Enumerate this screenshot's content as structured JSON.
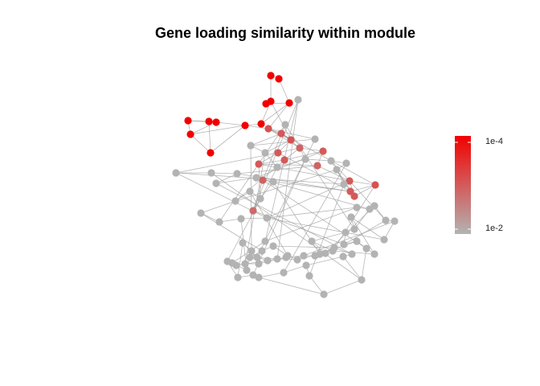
{
  "title": "Gene loading similarity within module",
  "colors": {
    "high": "#f20000",
    "low": "#b3b3b3",
    "edge": "#9e9e9e"
  },
  "colorbar": {
    "top_label": "1e-4",
    "bottom_label": "1e-2"
  },
  "nodes": [
    {
      "id": 0,
      "v": 1.0
    },
    {
      "id": 1,
      "v": 1.0
    },
    {
      "id": 2,
      "v": 1.0
    },
    {
      "id": 3,
      "v": 1.0
    },
    {
      "id": 4,
      "v": 1.0
    },
    {
      "id": 5,
      "v": 1.0
    },
    {
      "id": 6,
      "v": 1.0
    },
    {
      "id": 7,
      "v": 1.0
    },
    {
      "id": 8,
      "v": 1.0
    },
    {
      "id": 9,
      "v": 1.0
    },
    {
      "id": 10,
      "v": 1.0
    },
    {
      "id": 11,
      "v": 1.0
    },
    {
      "id": 12,
      "v": 0.55
    },
    {
      "id": 13,
      "v": 0.5
    },
    {
      "id": 14,
      "v": 0.55
    },
    {
      "id": 15,
      "v": 0.5
    },
    {
      "id": 16,
      "v": 0.45
    },
    {
      "id": 17,
      "v": 0.5
    },
    {
      "id": 18,
      "v": 0.5
    },
    {
      "id": 19,
      "v": 0.5
    },
    {
      "id": 20,
      "v": 0.45
    },
    {
      "id": 21,
      "v": 0.5
    },
    {
      "id": 22,
      "v": 0.55
    },
    {
      "id": 23,
      "v": 0.5
    },
    {
      "id": 24,
      "v": 0.5
    },
    {
      "id": 25,
      "v": 0.45
    },
    {
      "id": 26,
      "v": 0.4
    },
    {
      "id": 27,
      "v": 0.0
    },
    {
      "id": 28,
      "v": 0.0
    },
    {
      "id": 29,
      "v": 0.0
    },
    {
      "id": 30,
      "v": 0.0
    },
    {
      "id": 31,
      "v": 0.0
    },
    {
      "id": 32,
      "v": 0.0
    },
    {
      "id": 33,
      "v": 0.0
    },
    {
      "id": 34,
      "v": 0.0
    },
    {
      "id": 35,
      "v": 0.0
    },
    {
      "id": 36,
      "v": 0.0
    },
    {
      "id": 37,
      "v": 0.0
    },
    {
      "id": 38,
      "v": 0.0
    },
    {
      "id": 39,
      "v": 0.0
    },
    {
      "id": 40,
      "v": 0.0
    },
    {
      "id": 41,
      "v": 0.0
    },
    {
      "id": 42,
      "v": 0.0
    },
    {
      "id": 43,
      "v": 0.0
    },
    {
      "id": 44,
      "v": 0.0
    },
    {
      "id": 45,
      "v": 0.0
    },
    {
      "id": 46,
      "v": 0.0
    },
    {
      "id": 47,
      "v": 0.0
    },
    {
      "id": 48,
      "v": 0.0
    },
    {
      "id": 49,
      "v": 0.0
    },
    {
      "id": 50,
      "v": 0.0
    },
    {
      "id": 51,
      "v": 0.0
    },
    {
      "id": 52,
      "v": 0.0
    },
    {
      "id": 53,
      "v": 0.0
    },
    {
      "id": 54,
      "v": 0.0
    },
    {
      "id": 55,
      "v": 0.0
    },
    {
      "id": 56,
      "v": 0.0
    },
    {
      "id": 57,
      "v": 0.0
    },
    {
      "id": 58,
      "v": 0.0
    },
    {
      "id": 59,
      "v": 0.0
    },
    {
      "id": 60,
      "v": 0.0
    },
    {
      "id": 61,
      "v": 0.0
    },
    {
      "id": 62,
      "v": 0.0
    },
    {
      "id": 63,
      "v": 0.0
    },
    {
      "id": 64,
      "v": 0.0
    },
    {
      "id": 65,
      "v": 0.0
    },
    {
      "id": 66,
      "v": 0.0
    },
    {
      "id": 67,
      "v": 0.0
    },
    {
      "id": 68,
      "v": 0.0
    },
    {
      "id": 69,
      "v": 0.0
    },
    {
      "id": 70,
      "v": 0.0
    },
    {
      "id": 71,
      "v": 0.0
    },
    {
      "id": 72,
      "v": 0.0
    },
    {
      "id": 73,
      "v": 0.0
    },
    {
      "id": 74,
      "v": 0.0
    },
    {
      "id": 75,
      "v": 0.0
    },
    {
      "id": 76,
      "v": 0.0
    },
    {
      "id": 77,
      "v": 0.0
    },
    {
      "id": 78,
      "v": 0.0
    },
    {
      "id": 79,
      "v": 0.0
    },
    {
      "id": 80,
      "v": 0.0
    },
    {
      "id": 81,
      "v": 0.0
    },
    {
      "id": 82,
      "v": 0.0
    },
    {
      "id": 83,
      "v": 0.0
    },
    {
      "id": 84,
      "v": 0.0
    },
    {
      "id": 85,
      "v": 0.0
    },
    {
      "id": 86,
      "v": 0.0
    },
    {
      "id": 87,
      "v": 0.0
    },
    {
      "id": 88,
      "v": 0.0
    },
    {
      "id": 89,
      "v": 0.0
    },
    {
      "id": 90,
      "v": 0.0
    },
    {
      "id": 91,
      "v": 0.0
    },
    {
      "id": 92,
      "v": 0.0
    },
    {
      "id": 93,
      "v": 0.0
    },
    {
      "id": 94,
      "v": 0.0
    },
    {
      "id": 95,
      "v": 0.0
    },
    {
      "id": 96,
      "v": 0.0
    },
    {
      "id": 97,
      "v": 0.0
    },
    {
      "id": 98,
      "v": 0.0
    }
  ],
  "edges": [
    [
      0,
      1
    ],
    [
      1,
      4
    ],
    [
      0,
      3
    ],
    [
      3,
      2
    ],
    [
      2,
      4
    ],
    [
      3,
      5
    ],
    [
      4,
      5
    ],
    [
      5,
      11
    ],
    [
      4,
      12
    ],
    [
      3,
      14
    ],
    [
      6,
      8
    ],
    [
      6,
      7
    ],
    [
      8,
      9
    ],
    [
      8,
      11
    ],
    [
      7,
      10
    ],
    [
      9,
      10
    ],
    [
      9,
      11
    ],
    [
      11,
      12
    ],
    [
      6,
      9
    ],
    [
      10,
      11
    ],
    [
      12,
      13
    ],
    [
      12,
      14
    ],
    [
      13,
      14
    ],
    [
      14,
      15
    ],
    [
      13,
      16
    ],
    [
      15,
      16
    ],
    [
      16,
      17
    ],
    [
      16,
      18
    ],
    [
      17,
      18
    ],
    [
      17,
      20
    ],
    [
      18,
      19
    ],
    [
      19,
      20
    ],
    [
      19,
      21
    ],
    [
      20,
      21
    ],
    [
      21,
      22
    ],
    [
      22,
      23
    ],
    [
      21,
      23
    ],
    [
      22,
      24
    ],
    [
      15,
      24
    ],
    [
      24,
      25
    ],
    [
      25,
      26
    ],
    [
      26,
      27
    ],
    [
      25,
      28
    ],
    [
      12,
      29
    ],
    [
      29,
      30
    ],
    [
      30,
      31
    ],
    [
      31,
      32
    ],
    [
      32,
      33
    ],
    [
      33,
      34
    ],
    [
      34,
      35
    ],
    [
      35,
      36
    ],
    [
      36,
      37
    ],
    [
      37,
      38
    ],
    [
      38,
      39
    ],
    [
      39,
      40
    ],
    [
      40,
      41
    ],
    [
      41,
      42
    ],
    [
      42,
      43
    ],
    [
      43,
      44
    ],
    [
      44,
      45
    ],
    [
      45,
      46
    ],
    [
      46,
      47
    ],
    [
      47,
      48
    ],
    [
      48,
      49
    ],
    [
      49,
      50
    ],
    [
      50,
      51
    ],
    [
      51,
      52
    ],
    [
      52,
      53
    ],
    [
      53,
      54
    ],
    [
      54,
      55
    ],
    [
      55,
      56
    ],
    [
      56,
      57
    ],
    [
      57,
      58
    ],
    [
      58,
      59
    ],
    [
      59,
      60
    ],
    [
      60,
      61
    ],
    [
      61,
      62
    ],
    [
      62,
      63
    ],
    [
      63,
      64
    ],
    [
      64,
      65
    ],
    [
      65,
      66
    ],
    [
      66,
      67
    ],
    [
      67,
      68
    ],
    [
      68,
      69
    ],
    [
      69,
      70
    ],
    [
      70,
      71
    ],
    [
      71,
      72
    ],
    [
      72,
      73
    ],
    [
      73,
      74
    ],
    [
      74,
      75
    ],
    [
      75,
      76
    ],
    [
      76,
      77
    ],
    [
      77,
      78
    ],
    [
      78,
      79
    ],
    [
      79,
      80
    ],
    [
      80,
      81
    ],
    [
      81,
      82
    ],
    [
      82,
      83
    ],
    [
      83,
      84
    ],
    [
      84,
      85
    ],
    [
      85,
      86
    ],
    [
      86,
      87
    ],
    [
      87,
      88
    ],
    [
      88,
      89
    ],
    [
      89,
      90
    ],
    [
      90,
      91
    ],
    [
      91,
      92
    ],
    [
      92,
      93
    ],
    [
      93,
      94
    ],
    [
      94,
      95
    ],
    [
      95,
      96
    ],
    [
      96,
      97
    ],
    [
      97,
      98
    ],
    [
      98,
      27
    ],
    [
      20,
      40
    ],
    [
      19,
      44
    ],
    [
      23,
      36
    ],
    [
      24,
      34
    ],
    [
      15,
      38
    ],
    [
      13,
      30
    ],
    [
      17,
      42
    ],
    [
      18,
      46
    ],
    [
      26,
      60
    ],
    [
      25,
      62
    ],
    [
      22,
      64
    ],
    [
      21,
      50
    ],
    [
      14,
      31
    ],
    [
      16,
      33
    ],
    [
      28,
      58
    ],
    [
      27,
      70
    ],
    [
      29,
      72
    ],
    [
      30,
      74
    ],
    [
      31,
      76
    ],
    [
      32,
      78
    ],
    [
      33,
      80
    ],
    [
      35,
      82
    ],
    [
      37,
      84
    ],
    [
      39,
      86
    ],
    [
      41,
      88
    ],
    [
      43,
      90
    ],
    [
      45,
      92
    ],
    [
      47,
      94
    ],
    [
      49,
      96
    ],
    [
      51,
      98
    ],
    [
      53,
      66
    ],
    [
      55,
      68
    ],
    [
      57,
      63
    ],
    [
      59,
      65
    ],
    [
      61,
      67
    ],
    [
      69,
      75
    ],
    [
      71,
      77
    ],
    [
      73,
      79
    ],
    [
      81,
      85
    ],
    [
      83,
      87
    ],
    [
      89,
      93
    ],
    [
      91,
      95
    ],
    [
      12,
      16
    ],
    [
      15,
      19
    ],
    [
      13,
      22
    ],
    [
      24,
      40
    ],
    [
      26,
      44
    ],
    [
      28,
      48
    ],
    [
      50,
      56
    ],
    [
      52,
      58
    ],
    [
      54,
      60
    ],
    [
      36,
      46
    ],
    [
      38,
      50
    ],
    [
      34,
      54
    ],
    [
      42,
      52
    ],
    [
      62,
      86
    ]
  ]
}
